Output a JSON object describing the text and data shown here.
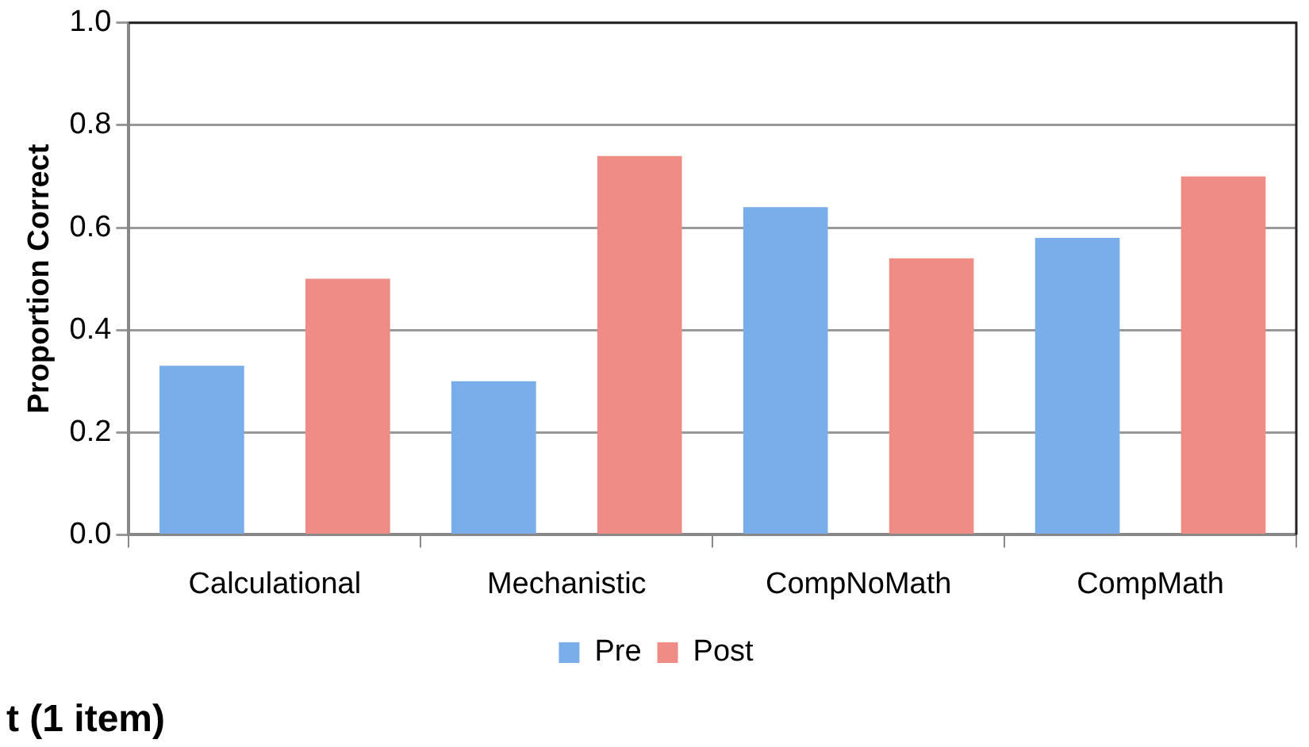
{
  "chart_data": {
    "type": "bar",
    "ylabel": "Proportion Correct",
    "categories": [
      "Calculational",
      "Mechanistic",
      "CompNoMath",
      "CompMath"
    ],
    "series": [
      {
        "name": "Pre",
        "color": "#7aaeea",
        "values": [
          0.33,
          0.3,
          0.64,
          0.58
        ]
      },
      {
        "name": "Post",
        "color": "#ee8c85",
        "values": [
          0.5,
          0.74,
          0.54,
          0.7
        ]
      }
    ],
    "ylim": [
      0,
      1
    ],
    "yticks": [
      {
        "value": 0,
        "label": "0.0"
      },
      {
        "value": 0.2,
        "label": "0.2"
      },
      {
        "value": 0.4,
        "label": "0.4"
      },
      {
        "value": 0.6,
        "label": "0.6"
      },
      {
        "value": 0.8,
        "label": "0.8"
      },
      {
        "value": 1,
        "label": "1.0"
      }
    ],
    "grid": "y",
    "legend": "bottom",
    "annotations": [
      "t (1 item)"
    ]
  }
}
